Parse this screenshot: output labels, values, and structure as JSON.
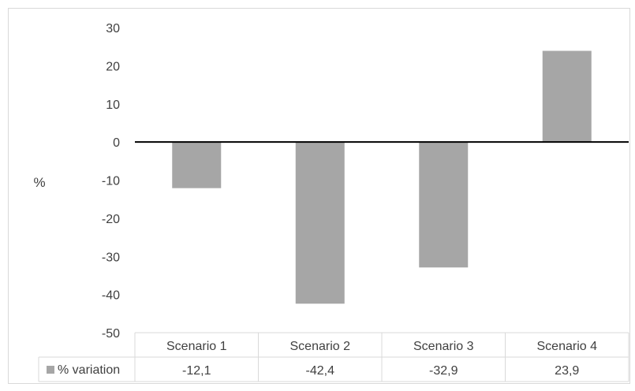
{
  "chart_data": {
    "type": "bar",
    "title": "",
    "ylabel": "%",
    "xlabel": "",
    "categories": [
      "Scenario 1",
      "Scenario 2",
      "Scenario 3",
      "Scenario 4"
    ],
    "series": [
      {
        "name": "% variation",
        "values": [
          -12.1,
          -42.4,
          -32.9,
          23.9
        ],
        "value_labels": [
          "-12,1",
          "-42,4",
          "-32,9",
          "23,9"
        ]
      }
    ],
    "ylim": [
      -50,
      30
    ],
    "yticks": [
      30,
      20,
      10,
      0,
      -10,
      -20,
      -30,
      -40,
      -50
    ],
    "grid": false,
    "legend": "data-table",
    "colors": {
      "bar": "#a6a6a6",
      "axis": "#000000",
      "table_line": "#d9d9d9"
    }
  }
}
